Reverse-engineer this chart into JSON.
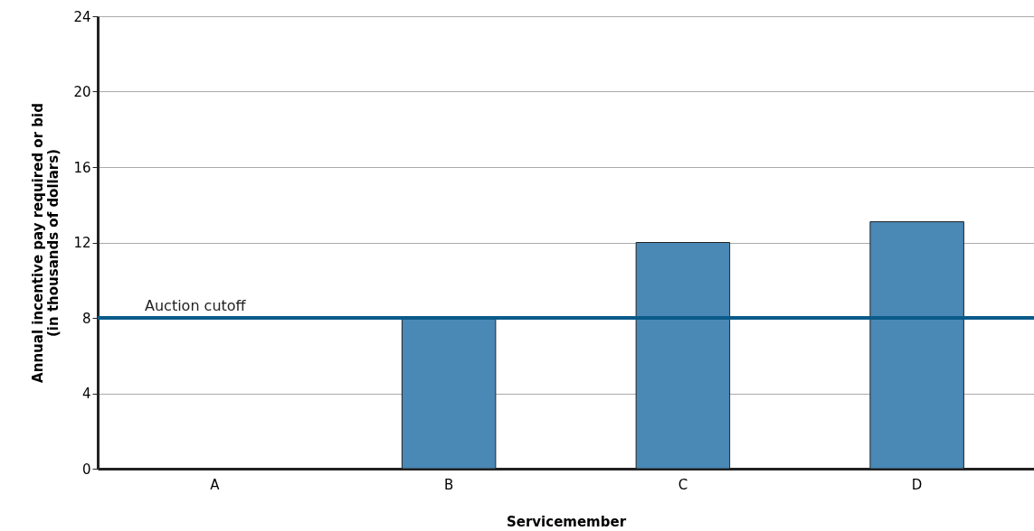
{
  "chart_data": {
    "type": "bar",
    "xlabel": "Servicemember",
    "ylabel": "Annual incentive pay required or bid\n(in thousands of dollars)",
    "categories": [
      "A",
      "B",
      "C",
      "D"
    ],
    "values": [
      null,
      8,
      12,
      13.1
    ],
    "color": "#4a88b5",
    "ylim": [
      0,
      24
    ],
    "yticks": [
      0,
      4,
      8,
      12,
      16,
      20,
      24
    ],
    "grid": "y",
    "ref_lines": [
      {
        "axis": "y",
        "value": 8,
        "label": "Auction cutoff",
        "color": "#0a5a8a"
      }
    ]
  }
}
